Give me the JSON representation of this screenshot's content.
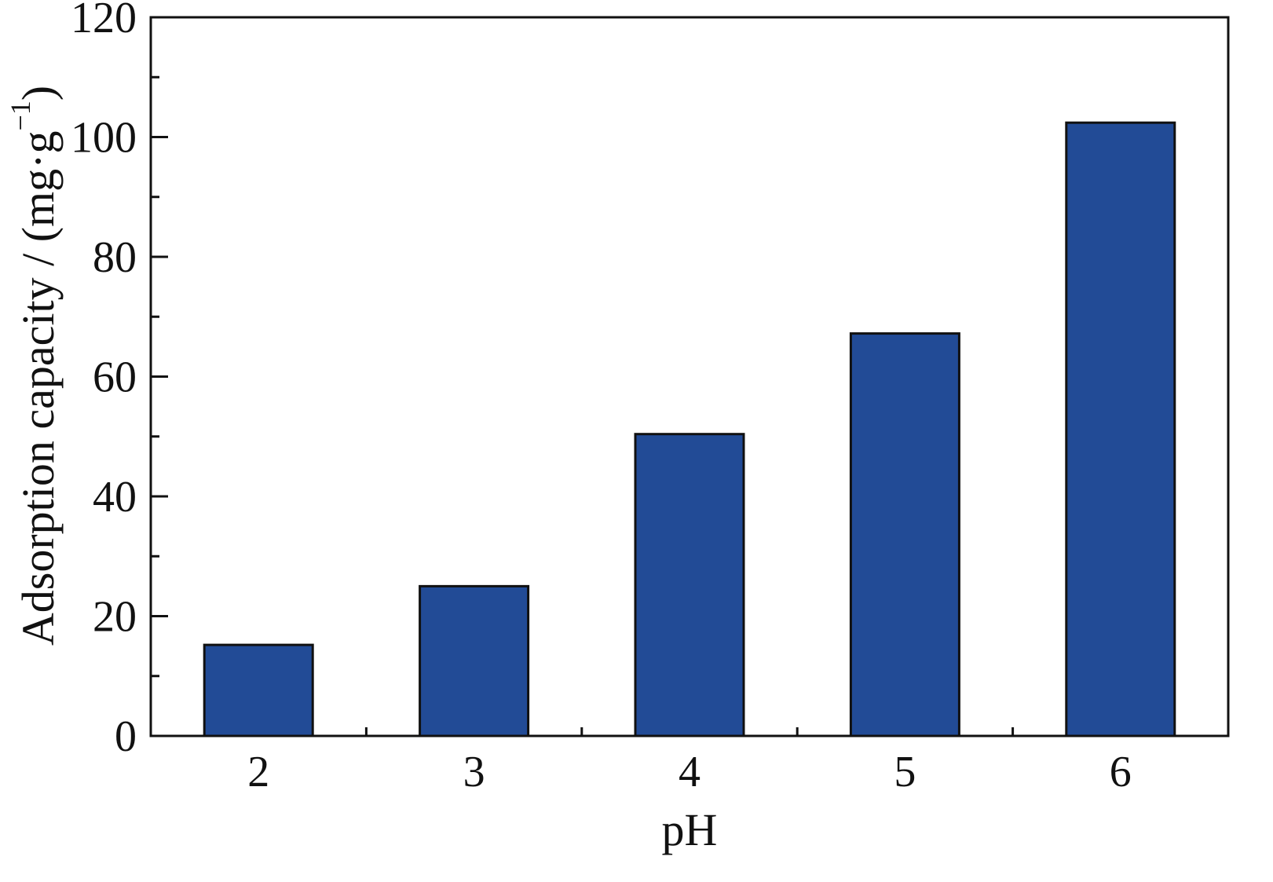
{
  "chart_data": {
    "type": "bar",
    "categories": [
      "2",
      "3",
      "4",
      "5",
      "6"
    ],
    "values": [
      15.2,
      25.0,
      50.4,
      67.2,
      102.4
    ],
    "title": "",
    "xlabel": "pH",
    "ylabel": {
      "main": "Adsorption capacity / (mg·g",
      "superscript": "−1",
      "closing": ")"
    },
    "ylim": [
      0,
      120
    ],
    "yticks": [
      "0",
      "20",
      "40",
      "60",
      "80",
      "100",
      "120"
    ],
    "bar_color": "#224b96",
    "grid": false,
    "legend": "none"
  }
}
